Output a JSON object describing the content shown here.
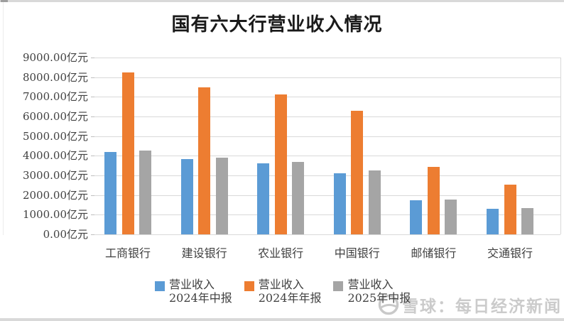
{
  "page": {
    "background": "#ffffff",
    "top_strip_color": "#d9d9d9",
    "bottom_strip_color": "#d9d9d9"
  },
  "watermark": {
    "logo": "xueqiu-snowball-icon",
    "logo_color": "#c9c9c9",
    "text": "雪球：每日经济新闻",
    "color": "#cbcbcb"
  },
  "chart_data": {
    "type": "bar",
    "title": "国有六大行营业收入情况",
    "unit": "亿元",
    "grid": true,
    "legend_position": "bottom",
    "categories": [
      "工商银行",
      "建设银行",
      "农业银行",
      "中国银行",
      "邮储银行",
      "交通银行"
    ],
    "series": [
      {
        "name": "营业收入2024年中报",
        "legend_lines": [
          "营业收入",
          "2024年中报"
        ],
        "color": "#5B9BD5",
        "values": [
          4180,
          3840,
          3620,
          3120,
          1720,
          1290
        ]
      },
      {
        "name": "营业收入2024年年报",
        "legend_lines": [
          "营业收入",
          "2024年年报"
        ],
        "color": "#ED7D31",
        "values": [
          8230,
          7500,
          7110,
          6300,
          3450,
          2540
        ]
      },
      {
        "name": "营业收入2025年中报",
        "legend_lines": [
          "营业收入",
          "2025年中报"
        ],
        "color": "#A5A5A5",
        "values": [
          4250,
          3920,
          3680,
          3270,
          1770,
          1330
        ]
      }
    ],
    "y_axis": {
      "min": 0,
      "max": 9000,
      "step": 1000,
      "tick_labels": [
        "9000.00亿元",
        "8000.00亿元",
        "7000.00亿元",
        "6000.00亿元",
        "5000.00亿元",
        "4000.00亿元",
        "3000.00亿元",
        "2000.00亿元",
        "1000.00亿元",
        "0.00亿元"
      ],
      "gridline_color": "#d9d9d9"
    }
  }
}
